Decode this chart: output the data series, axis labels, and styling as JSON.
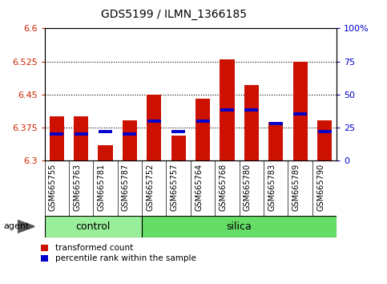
{
  "title": "GDS5199 / ILMN_1366185",
  "samples": [
    "GSM665755",
    "GSM665763",
    "GSM665781",
    "GSM665787",
    "GSM665752",
    "GSM665757",
    "GSM665764",
    "GSM665768",
    "GSM665780",
    "GSM665783",
    "GSM665789",
    "GSM665790"
  ],
  "groups": [
    "control",
    "control",
    "control",
    "control",
    "silica",
    "silica",
    "silica",
    "silica",
    "silica",
    "silica",
    "silica",
    "silica"
  ],
  "bar_values": [
    6.4,
    6.4,
    6.335,
    6.392,
    6.45,
    6.356,
    6.44,
    6.53,
    6.472,
    6.387,
    6.524,
    6.392
  ],
  "percentile_values": [
    20,
    20,
    22,
    20,
    30,
    22,
    30,
    38,
    38,
    28,
    35,
    22
  ],
  "y_min": 6.3,
  "y_max": 6.6,
  "y_ticks": [
    6.3,
    6.375,
    6.45,
    6.525,
    6.6
  ],
  "y_right_ticks": [
    0,
    25,
    50,
    75,
    100
  ],
  "bar_color": "#cc1100",
  "blue_color": "#0000cc",
  "control_color": "#99ee99",
  "silica_color": "#66dd66",
  "xtick_bg_color": "#cccccc",
  "legend_red_label": "transformed count",
  "legend_blue_label": "percentile rank within the sample",
  "agent_label": "agent",
  "group_label_control": "control",
  "group_label_silica": "silica"
}
